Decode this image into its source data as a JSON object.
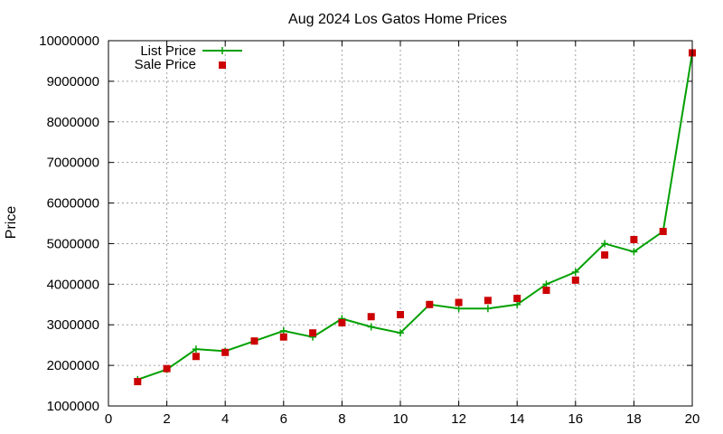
{
  "chart_data": {
    "type": "line",
    "title": "Aug 2024 Los Gatos Home Prices",
    "xlabel": "",
    "ylabel": "Price",
    "xlim": [
      0,
      20
    ],
    "ylim": [
      1000000,
      10000000
    ],
    "xticks": [
      0,
      2,
      4,
      6,
      8,
      10,
      12,
      14,
      16,
      18,
      20
    ],
    "yticks": [
      1000000,
      2000000,
      3000000,
      4000000,
      5000000,
      6000000,
      7000000,
      8000000,
      9000000,
      10000000
    ],
    "grid": true,
    "legend_position": "top-left",
    "x": [
      1,
      2,
      3,
      4,
      5,
      6,
      7,
      8,
      9,
      10,
      11,
      12,
      13,
      14,
      15,
      16,
      17,
      18,
      19,
      20
    ],
    "series": [
      {
        "name": "List Price",
        "style": "line-points",
        "color": "#00a000",
        "values": [
          1650000,
          1900000,
          2400000,
          2350000,
          2600000,
          2850000,
          2700000,
          3150000,
          2950000,
          2800000,
          3500000,
          3400000,
          3400000,
          3500000,
          4000000,
          4300000,
          5000000,
          4800000,
          5300000,
          9700000
        ]
      },
      {
        "name": "Sale Price",
        "style": "points",
        "color": "#cc0000",
        "values": [
          1600000,
          1920000,
          2220000,
          2320000,
          2600000,
          2700000,
          2800000,
          3050000,
          3200000,
          3250000,
          3500000,
          3550000,
          3600000,
          3650000,
          3850000,
          4100000,
          4720000,
          5100000,
          5300000,
          9700000
        ]
      }
    ]
  }
}
